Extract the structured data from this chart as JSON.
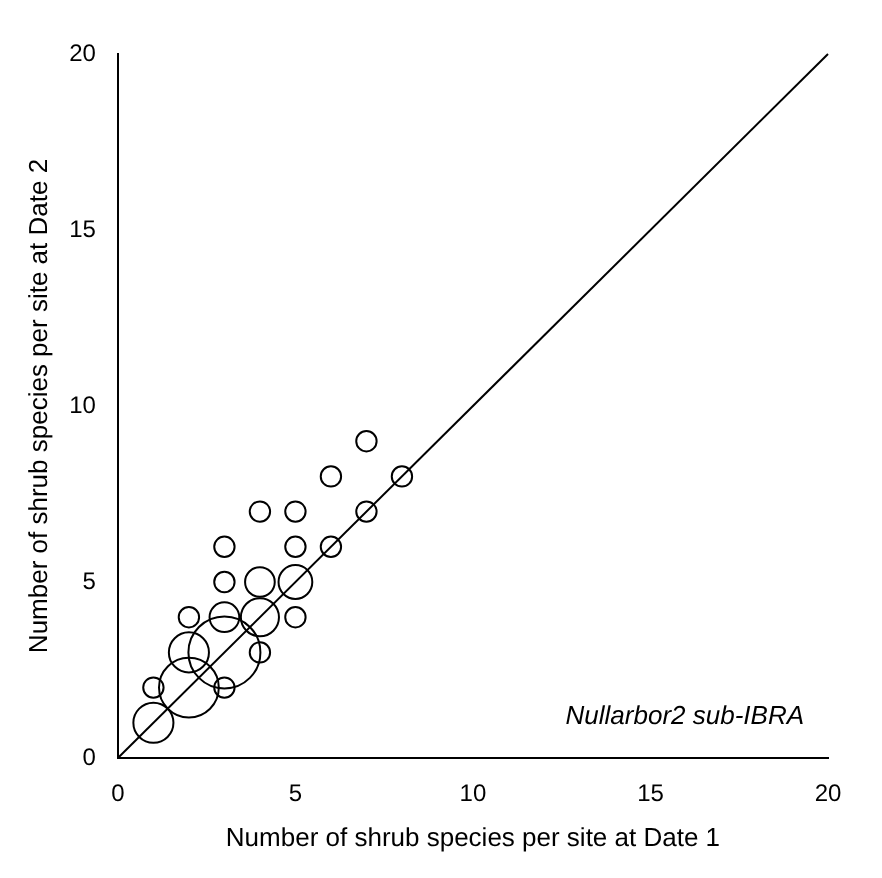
{
  "chart_data": {
    "type": "bubble",
    "xlabel": "Number of shrub species per site at Date 1",
    "ylabel": "Number of shrub species per site at Date 2",
    "xlim": [
      0,
      20
    ],
    "ylim": [
      0,
      20
    ],
    "xticks": [
      0,
      5,
      10,
      15,
      20
    ],
    "yticks": [
      0,
      5,
      10,
      15,
      20
    ],
    "grid": false,
    "legend": false,
    "annotations": [
      "Nullarbor2 sub-IBRA"
    ],
    "series": [
      {
        "color": "#000000",
        "x": [
          7,
          6,
          8,
          4,
          5,
          7,
          3,
          5,
          6,
          3,
          4,
          5,
          2,
          3,
          4,
          5,
          2,
          3,
          4,
          1,
          3,
          1,
          2
        ],
        "values": [
          9,
          8,
          8,
          7,
          7,
          7,
          6,
          6,
          6,
          5,
          5,
          5,
          4,
          4,
          4,
          4,
          3,
          3,
          3,
          2,
          2,
          1,
          2
        ],
        "sizes": [
          0.08,
          0.08,
          0.08,
          0.08,
          0.08,
          0.08,
          0.08,
          0.08,
          0.08,
          0.08,
          0.17,
          0.22,
          0.08,
          0.17,
          0.28,
          0.08,
          0.31,
          1,
          0.08,
          0.08,
          0.08,
          0.31,
          0.69
        ]
      },
      {
        "type": "line",
        "color": "#000000",
        "x": [
          0,
          20
        ],
        "values": [
          0,
          20
        ]
      }
    ]
  }
}
